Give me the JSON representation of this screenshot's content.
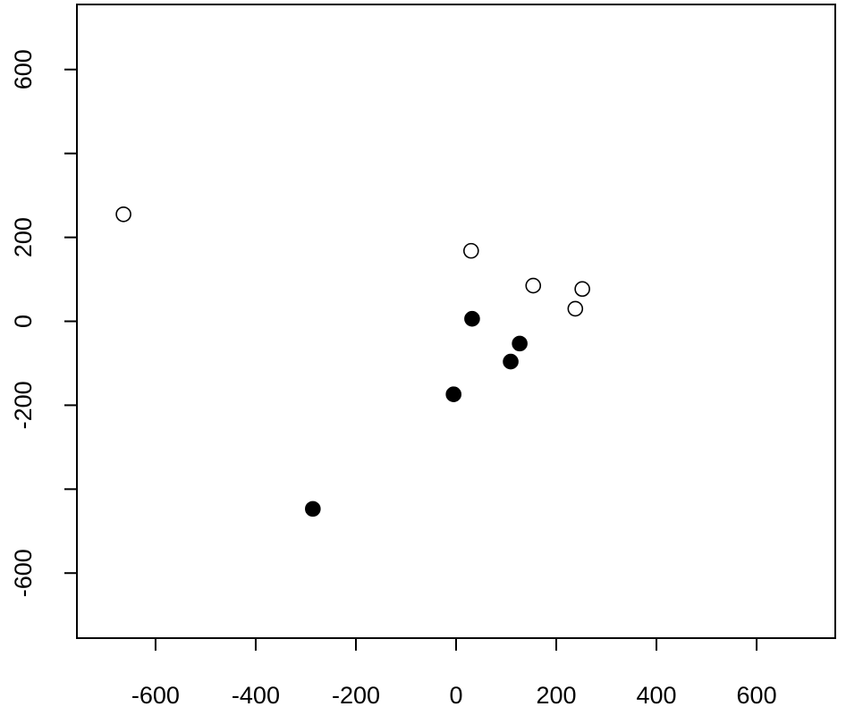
{
  "chart_data": {
    "type": "scatter",
    "xlim": [
      -757,
      757
    ],
    "ylim": [
      -755,
      755
    ],
    "xticks": [
      -600,
      -400,
      -200,
      0,
      200,
      400,
      600
    ],
    "yticks": [
      -600,
      {
        "value": -400,
        "label": null
      },
      -200,
      0,
      200,
      {
        "value": 400,
        "label": null
      },
      600
    ],
    "series": [
      {
        "color": "#000000",
        "filled": false,
        "x": [
          -664,
          30,
          154,
          252,
          238
        ],
        "values": [
          255,
          168,
          85,
          77,
          30
        ]
      },
      {
        "color": "#000000",
        "filled": true,
        "x": [
          32,
          127,
          109,
          -5,
          -286
        ],
        "values": [
          6,
          -53,
          -96,
          -174,
          -447
        ]
      }
    ]
  }
}
